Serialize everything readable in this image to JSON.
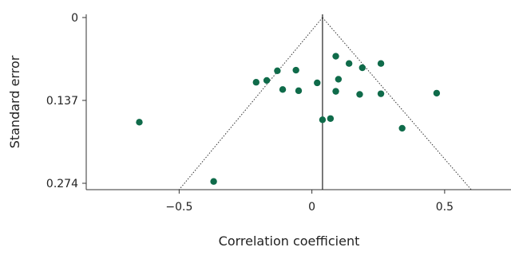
{
  "chart_data": {
    "type": "scatter",
    "title": "",
    "xlabel": "Correlation coefficient",
    "ylabel": "Standard error",
    "xlim": [
      -0.85,
      0.75
    ],
    "ylim": [
      0.274,
      0
    ],
    "y_inverted": true,
    "grid": false,
    "legend": "none",
    "x_ticks": [
      -0.5,
      0,
      0.5
    ],
    "x_tick_labels": [
      "−0.5",
      "0",
      "0.5"
    ],
    "y_ticks": [
      0,
      0.137,
      0.274
    ],
    "y_tick_labels": [
      "0",
      "0.137",
      "0.274"
    ],
    "reference_line": {
      "x": 0.04
    },
    "funnel": {
      "apex_x": 0.04,
      "apex_y": 0,
      "left_base_x": -0.5,
      "right_base_x": 0.6,
      "base_y": 0.274
    },
    "point_color": "#0f6b4a",
    "points": [
      {
        "x": -0.65,
        "y": 0.173
      },
      {
        "x": -0.37,
        "y": 0.271
      },
      {
        "x": -0.21,
        "y": 0.107
      },
      {
        "x": -0.17,
        "y": 0.104
      },
      {
        "x": -0.13,
        "y": 0.088
      },
      {
        "x": -0.11,
        "y": 0.119
      },
      {
        "x": -0.06,
        "y": 0.087
      },
      {
        "x": -0.05,
        "y": 0.121
      },
      {
        "x": 0.02,
        "y": 0.108
      },
      {
        "x": 0.04,
        "y": 0.169
      },
      {
        "x": 0.07,
        "y": 0.167
      },
      {
        "x": 0.09,
        "y": 0.064
      },
      {
        "x": 0.09,
        "y": 0.122
      },
      {
        "x": 0.1,
        "y": 0.102
      },
      {
        "x": 0.14,
        "y": 0.076
      },
      {
        "x": 0.19,
        "y": 0.083
      },
      {
        "x": 0.18,
        "y": 0.127
      },
      {
        "x": 0.26,
        "y": 0.076
      },
      {
        "x": 0.26,
        "y": 0.126
      },
      {
        "x": 0.34,
        "y": 0.183
      },
      {
        "x": 0.47,
        "y": 0.125
      }
    ]
  }
}
